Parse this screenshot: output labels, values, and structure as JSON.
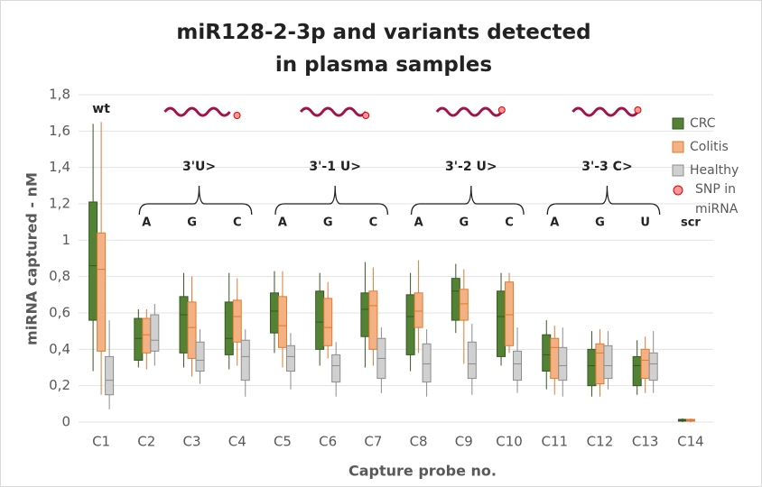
{
  "chart_data": {
    "type": "box",
    "title": "miR128-2-3p and variants detected in plasma samples",
    "x_label": "Capture probe no.",
    "y_label": "miRNA captured - nM",
    "categories": [
      "C1",
      "C2",
      "C3",
      "C4",
      "C5",
      "C6",
      "C7",
      "C8",
      "C9",
      "C10",
      "C11",
      "C12",
      "C13",
      "C14"
    ],
    "ylim": [
      0,
      1.8
    ],
    "yticks": [
      0,
      {
        "value": 0.2,
        "label": "0,2"
      },
      {
        "value": 0.4,
        "label": "0,4"
      },
      {
        "value": 0.6,
        "label": "0,6"
      },
      {
        "value": 0.8,
        "label": "0,8"
      },
      1,
      {
        "value": 1.2,
        "label": "1,2"
      },
      {
        "value": 1.4,
        "label": "1,4"
      },
      {
        "value": 1.6,
        "label": "1,6"
      },
      {
        "value": 1.8,
        "label": "1,8"
      }
    ],
    "grid": true,
    "legend": "right",
    "series": [
      {
        "name": "CRC",
        "color": "#548235",
        "edge": "#375623",
        "low": [
          0.28,
          0.3,
          0.3,
          0.29,
          0.38,
          0.31,
          0.3,
          0.28,
          0.49,
          0.31,
          0.18,
          0.14,
          0.15,
          0.0
        ],
        "q1": [
          0.56,
          0.34,
          0.38,
          0.37,
          0.49,
          0.4,
          0.47,
          0.37,
          0.56,
          0.36,
          0.28,
          0.2,
          0.2,
          0.005
        ],
        "median": [
          0.86,
          0.46,
          0.59,
          0.46,
          0.61,
          0.55,
          0.62,
          0.58,
          0.72,
          0.58,
          0.37,
          0.31,
          0.31,
          0.01
        ],
        "q3": [
          1.21,
          0.57,
          0.69,
          0.66,
          0.71,
          0.72,
          0.71,
          0.7,
          0.79,
          0.72,
          0.48,
          0.4,
          0.36,
          0.015
        ],
        "high": [
          1.64,
          0.62,
          0.82,
          0.82,
          0.83,
          0.82,
          0.88,
          0.82,
          0.87,
          0.82,
          0.56,
          0.5,
          0.45,
          0.02
        ]
      },
      {
        "name": "Colitis",
        "color": "#f4b183",
        "edge": "#e07a2e",
        "low": [
          0.15,
          0.29,
          0.25,
          0.31,
          0.3,
          0.35,
          0.31,
          0.38,
          0.32,
          0.38,
          0.15,
          0.14,
          0.16,
          0.0
        ],
        "q1": [
          0.39,
          0.38,
          0.35,
          0.44,
          0.41,
          0.42,
          0.4,
          0.52,
          0.56,
          0.42,
          0.24,
          0.21,
          0.24,
          0.005
        ],
        "median": [
          0.84,
          0.48,
          0.52,
          0.58,
          0.53,
          0.52,
          0.64,
          0.61,
          0.65,
          0.59,
          0.41,
          0.38,
          0.34,
          0.01
        ],
        "q3": [
          1.04,
          0.57,
          0.66,
          0.67,
          0.69,
          0.68,
          0.72,
          0.71,
          0.73,
          0.77,
          0.46,
          0.43,
          0.4,
          0.015
        ],
        "high": [
          1.65,
          0.62,
          0.8,
          0.79,
          0.83,
          0.77,
          0.85,
          0.89,
          0.84,
          0.82,
          0.53,
          0.51,
          0.47,
          0.02
        ]
      },
      {
        "name": "Healthy",
        "color": "#d0d0d0",
        "edge": "#8c8c8c",
        "low": [
          0.07,
          0.31,
          0.21,
          0.14,
          0.18,
          0.14,
          0.16,
          0.14,
          0.15,
          0.16,
          0.14,
          0.18,
          0.16,
          null
        ],
        "q1": [
          0.15,
          0.39,
          0.28,
          0.23,
          0.28,
          0.22,
          0.24,
          0.22,
          0.24,
          0.23,
          0.23,
          0.24,
          0.23,
          null
        ],
        "median": [
          0.23,
          0.45,
          0.34,
          0.36,
          0.36,
          0.31,
          0.35,
          0.32,
          0.32,
          0.32,
          0.31,
          0.31,
          0.32,
          null
        ],
        "q3": [
          0.36,
          0.59,
          0.44,
          0.45,
          0.42,
          0.37,
          0.46,
          0.43,
          0.44,
          0.39,
          0.41,
          0.42,
          0.38,
          null
        ],
        "high": [
          0.56,
          0.65,
          0.51,
          0.51,
          0.49,
          0.44,
          0.52,
          0.51,
          0.54,
          0.52,
          0.52,
          0.5,
          0.5,
          null
        ]
      }
    ],
    "snp_legend": "SNP in miRNA",
    "wt_label": "wt",
    "scr_label": "scr",
    "groups": [
      {
        "label": "3'U>",
        "letters": [
          "A",
          "G",
          "C"
        ]
      },
      {
        "label": "3'-1 U>",
        "letters": [
          "A",
          "G",
          "C"
        ]
      },
      {
        "label": "3'-2 U>",
        "letters": [
          "A",
          "G",
          "C"
        ]
      },
      {
        "label": "3'-3 C>",
        "letters": [
          "A",
          "G",
          "U"
        ]
      }
    ]
  }
}
